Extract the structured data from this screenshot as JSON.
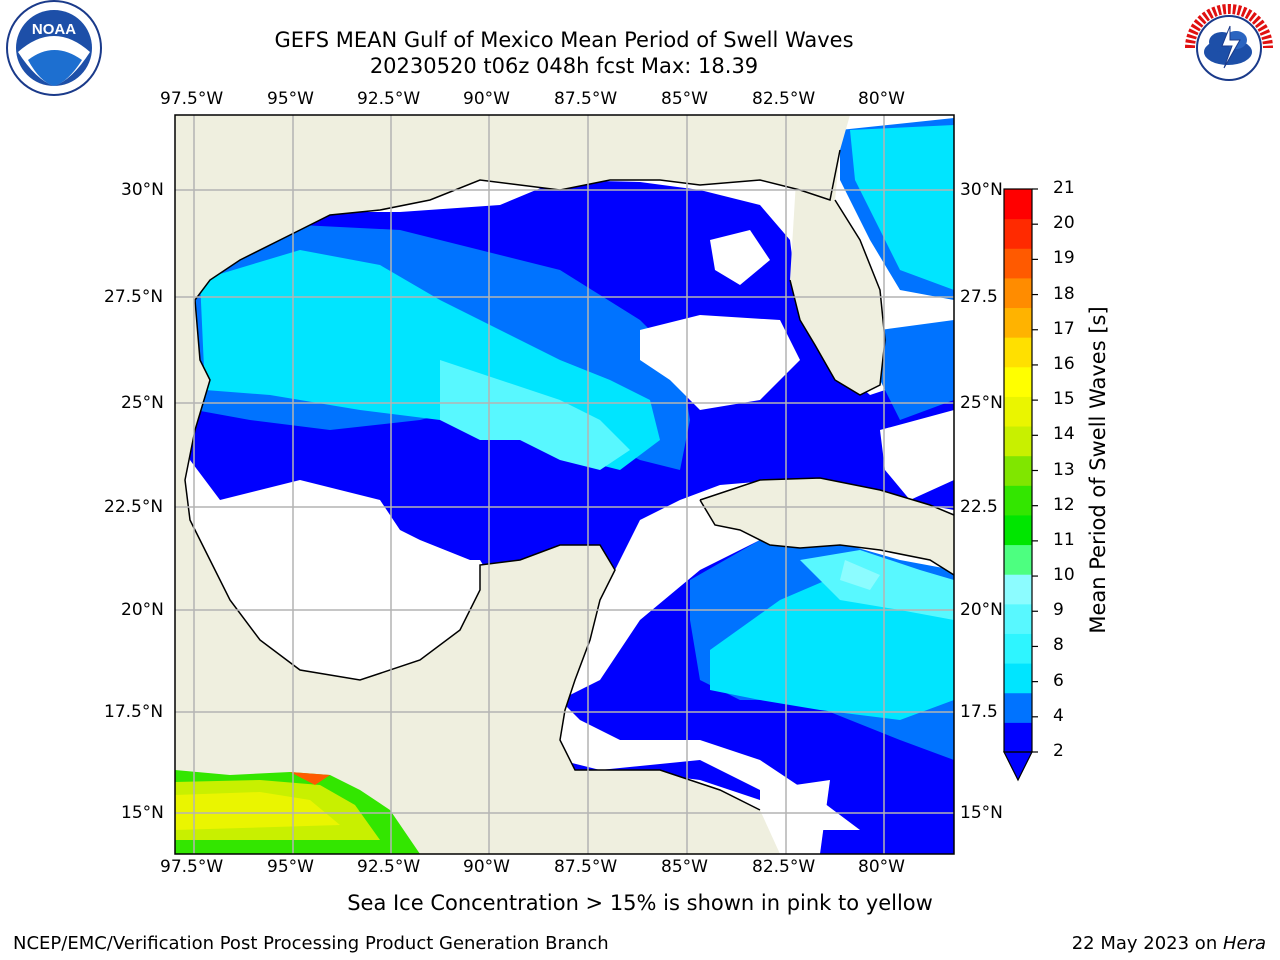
{
  "header": {
    "title_line1": "GEFS MEAN Gulf of Mexico Mean Period of Swell Waves",
    "title_line2": "20230520 t06z 048h fcst   Max: 18.39"
  },
  "logos": {
    "left": {
      "name": "noaa-logo",
      "text": "NOAA"
    },
    "right": {
      "name": "nws-logo",
      "text": "NATIONAL WEATHER SERVICE"
    }
  },
  "axes": {
    "lon_ticks": [
      "97.5°W",
      "95°W",
      "92.5°W",
      "90°W",
      "87.5°W",
      "85°W",
      "82.5°W",
      "80°W"
    ],
    "lat_ticks_left": [
      "30°N",
      "27.5°N",
      "25°N",
      "22.5°N",
      "20°N",
      "17.5°N",
      "15°N"
    ],
    "lat_ticks_right": [
      "30°N",
      "27.5",
      "25°N",
      "22.5",
      "20°N",
      "17.5",
      "15°N"
    ]
  },
  "colorbar": {
    "label": "Mean Period of Swell Waves [s]",
    "ticks": [
      "21",
      "20",
      "19",
      "18",
      "17",
      "16",
      "15",
      "14",
      "13",
      "12",
      "11",
      "10",
      "9",
      "8",
      "6",
      "4",
      "2"
    ],
    "colors": [
      "#0000ff",
      "#0073ff",
      "#00e5ff",
      "#2ef5ff",
      "#58f8ff",
      "#8cfcff",
      "#4dff80",
      "#00e600",
      "#33e600",
      "#80e600",
      "#c8f000",
      "#eaf500",
      "#ffff00",
      "#ffe000",
      "#ffb300",
      "#ff8c00",
      "#ff5a00",
      "#ff2a00",
      "#ff0000"
    ],
    "extend_color": "#0000ff"
  },
  "colors": {
    "land": "#efefdf",
    "ocean_white": "#ffffff",
    "grid": "#b4b4b4"
  },
  "note": "Sea Ice Concentration > 15% is shown in pink to yellow",
  "footer": {
    "left": "NCEP/EMC/Verification Post Processing Product Generation Branch",
    "right_prefix": "22 May 2023 on ",
    "right_machine": "Hera"
  }
}
